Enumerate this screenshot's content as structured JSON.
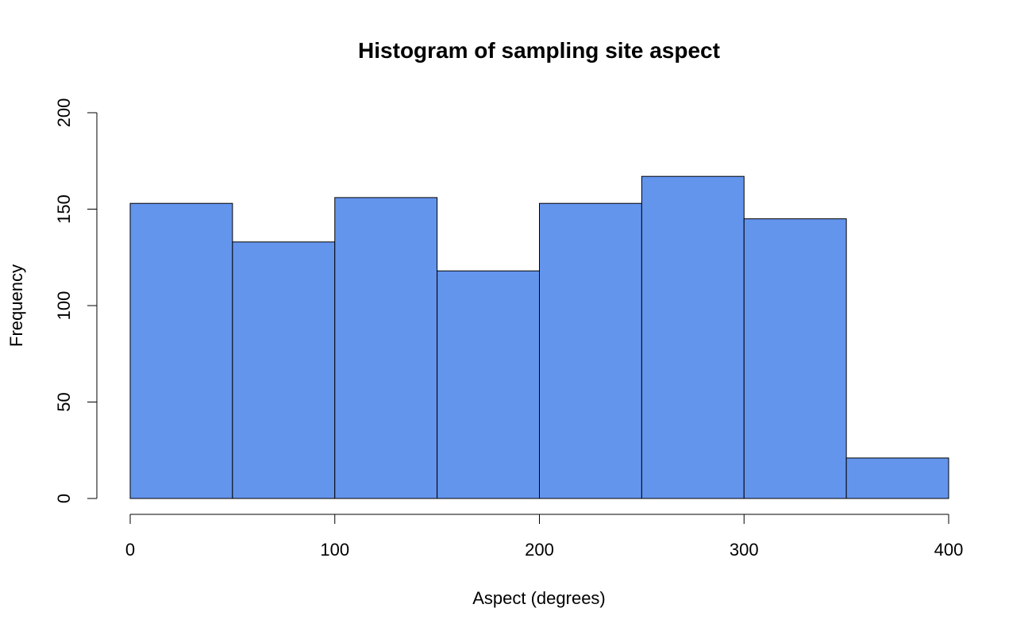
{
  "chart_data": {
    "type": "bar",
    "title": "Histogram of sampling site aspect",
    "xlabel": "Aspect (degrees)",
    "ylabel": "Frequency",
    "bin_edges": [
      0,
      50,
      100,
      150,
      200,
      250,
      300,
      350,
      400
    ],
    "values": [
      153,
      133,
      156,
      118,
      153,
      167,
      145,
      21
    ],
    "xlim": [
      0,
      400
    ],
    "ylim": [
      0,
      200
    ],
    "x_ticks": [
      0,
      100,
      200,
      300,
      400
    ],
    "y_ticks": [
      0,
      50,
      100,
      150,
      200
    ],
    "bar_color": "#6495ED",
    "grid": false
  }
}
